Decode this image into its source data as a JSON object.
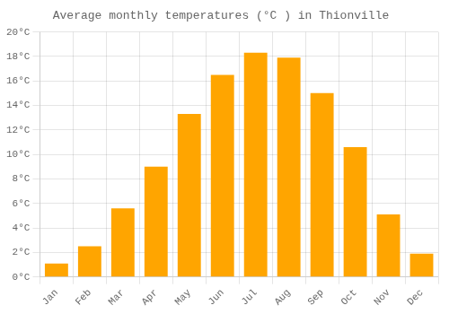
{
  "chart_data": {
    "type": "bar",
    "title": "Average monthly temperatures (°C ) in Thionville",
    "categories": [
      "Jan",
      "Feb",
      "Mar",
      "Apr",
      "May",
      "Jun",
      "Jul",
      "Aug",
      "Sep",
      "Oct",
      "Nov",
      "Dec"
    ],
    "values": [
      1.1,
      2.5,
      5.6,
      9.0,
      13.3,
      16.5,
      18.3,
      17.9,
      15.0,
      10.6,
      5.1,
      1.9
    ],
    "color": "#FFA500",
    "ylim": [
      0,
      20
    ],
    "yticks": [
      {
        "value": 0,
        "label": "0°C"
      },
      {
        "value": 2,
        "label": "2°C"
      },
      {
        "value": 4,
        "label": "4°C"
      },
      {
        "value": 6,
        "label": "6°C"
      },
      {
        "value": 8,
        "label": "8°C"
      },
      {
        "value": 10,
        "label": "10°C"
      },
      {
        "value": 12,
        "label": "12°C"
      },
      {
        "value": 14,
        "label": "14°C"
      },
      {
        "value": 16,
        "label": "16°C"
      },
      {
        "value": 18,
        "label": "18°C"
      },
      {
        "value": 20,
        "label": "20°C"
      }
    ],
    "grid": true
  }
}
